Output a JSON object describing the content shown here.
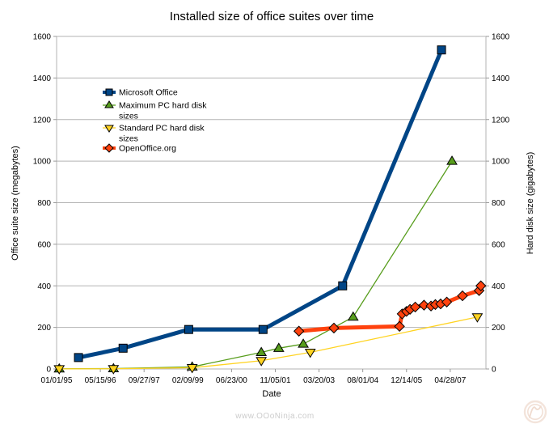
{
  "watermark": "www.OOoNinja.com",
  "logo": "ooninja-circle-logo",
  "chart_data": {
    "type": "line",
    "title": "Installed size of office suites over time",
    "xlabel": "Date",
    "ylabel_left": "Office suite size (megabytes)",
    "ylabel_right": "Hard disk size (gigabytes)",
    "x_unit": "days since 01/01/95, ticks every 500 days",
    "x_tick_labels": [
      "01/01/95",
      "05/15/96",
      "09/27/97",
      "02/09/99",
      "06/23/00",
      "11/05/01",
      "03/20/03",
      "08/01/04",
      "12/14/05",
      "04/28/07"
    ],
    "x_tick_days": [
      0,
      500,
      1000,
      1500,
      2000,
      2500,
      3000,
      3500,
      4000,
      4500
    ],
    "xlim_days": [
      0,
      4908
    ],
    "y_ticks": [
      0,
      200,
      400,
      600,
      800,
      1000,
      1200,
      1400,
      1600
    ],
    "ylim": [
      0,
      1600
    ],
    "grid": "horizontal-only",
    "grid_color": "#b3b3b3",
    "axis_color": "#b3b3b3",
    "tick_color": "#999999",
    "legend_position": "inside-upper-left",
    "legend_items": [
      {
        "lines": [
          "Microsoft Office"
        ]
      },
      {
        "lines": [
          "Maximum PC hard disk",
          "sizes"
        ]
      },
      {
        "lines": [
          "Standard PC hard disk",
          "sizes"
        ]
      },
      {
        "lines": [
          "OpenOffice.org"
        ]
      }
    ],
    "series": [
      {
        "name": "Microsoft Office",
        "axis": "left",
        "unit": "MB",
        "color": "#004586",
        "marker": "square",
        "line_width": 5,
        "points": [
          [
            250,
            55
          ],
          [
            760,
            100
          ],
          [
            1510,
            190
          ],
          [
            2360,
            190
          ],
          [
            3270,
            400
          ],
          [
            4400,
            1535
          ]
        ]
      },
      {
        "name": "Maximum PC hard disk sizes",
        "axis": "right",
        "unit": "GB",
        "color": "#579d1c",
        "marker": "triangle-up",
        "line_width": 1.3,
        "points": [
          [
            30,
            1
          ],
          [
            650,
            2
          ],
          [
            1550,
            10
          ],
          [
            2340,
            80
          ],
          [
            2540,
            100
          ],
          [
            2820,
            120
          ],
          [
            3390,
            250
          ],
          [
            4520,
            1000
          ]
        ]
      },
      {
        "name": "Standard PC hard disk sizes",
        "axis": "right",
        "unit": "GB",
        "color": "#ffd320",
        "marker": "triangle-down",
        "line_width": 1.3,
        "points": [
          [
            30,
            0.5
          ],
          [
            650,
            1
          ],
          [
            1550,
            6
          ],
          [
            2340,
            40
          ],
          [
            2900,
            80
          ],
          [
            4810,
            250
          ]
        ]
      },
      {
        "name": "OpenOffice.org",
        "axis": "left",
        "unit": "MB",
        "color": "#ff420e",
        "marker": "diamond",
        "line_width": 5,
        "points": [
          [
            2770,
            182
          ],
          [
            3170,
            197
          ],
          [
            3920,
            205
          ],
          [
            3950,
            265
          ],
          [
            4000,
            277
          ],
          [
            4040,
            287
          ],
          [
            4100,
            298
          ],
          [
            4200,
            307
          ],
          [
            4280,
            303
          ],
          [
            4330,
            310
          ],
          [
            4390,
            313
          ],
          [
            4460,
            322
          ],
          [
            4640,
            352
          ],
          [
            4830,
            377
          ],
          [
            4850,
            400
          ]
        ]
      }
    ]
  }
}
